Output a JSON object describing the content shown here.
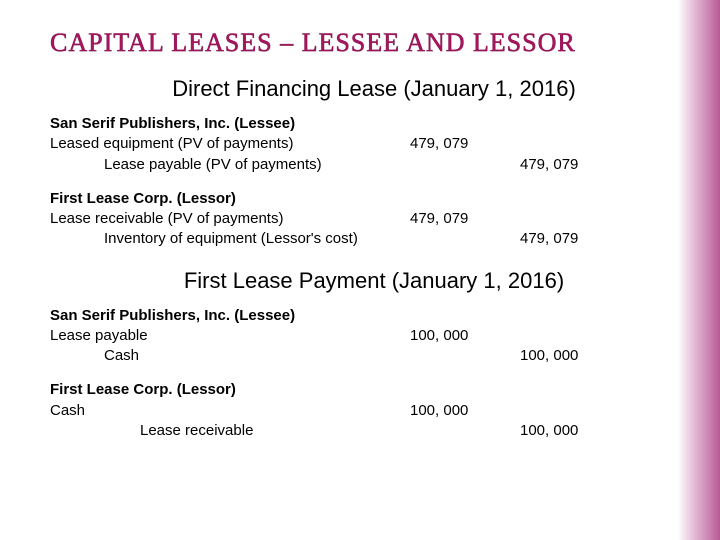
{
  "title": "CAPITAL LEASES – LESSEE AND LESSOR",
  "section1": {
    "heading": "Direct Financing Lease (January 1, 2016)",
    "lessee": {
      "header": "San Serif Publishers, Inc. (Lessee)",
      "line1_desc": "Leased equipment (PV of payments)",
      "line1_debit": "479, 079",
      "line2_desc": "Lease payable (PV of payments)",
      "line2_credit": "479, 079"
    },
    "lessor": {
      "header": "First Lease Corp. (Lessor)",
      "line1_desc": "Lease receivable (PV of payments)",
      "line1_debit": "479, 079",
      "line2_desc": "Inventory of equipment (Lessor's cost)",
      "line2_credit": "479, 079"
    }
  },
  "section2": {
    "heading": "First Lease Payment (January 1, 2016)",
    "lessee": {
      "header": "San Serif Publishers, Inc. (Lessee)",
      "line1_desc": "Lease payable",
      "line1_debit": "100, 000",
      "line2_desc": "Cash",
      "line2_credit": "100, 000"
    },
    "lessor": {
      "header": "First Lease Corp. (Lessor)",
      "line1_desc": "Cash",
      "line1_debit": "100, 000",
      "line2_desc": "Lease receivable",
      "line2_credit": "100, 000"
    }
  }
}
